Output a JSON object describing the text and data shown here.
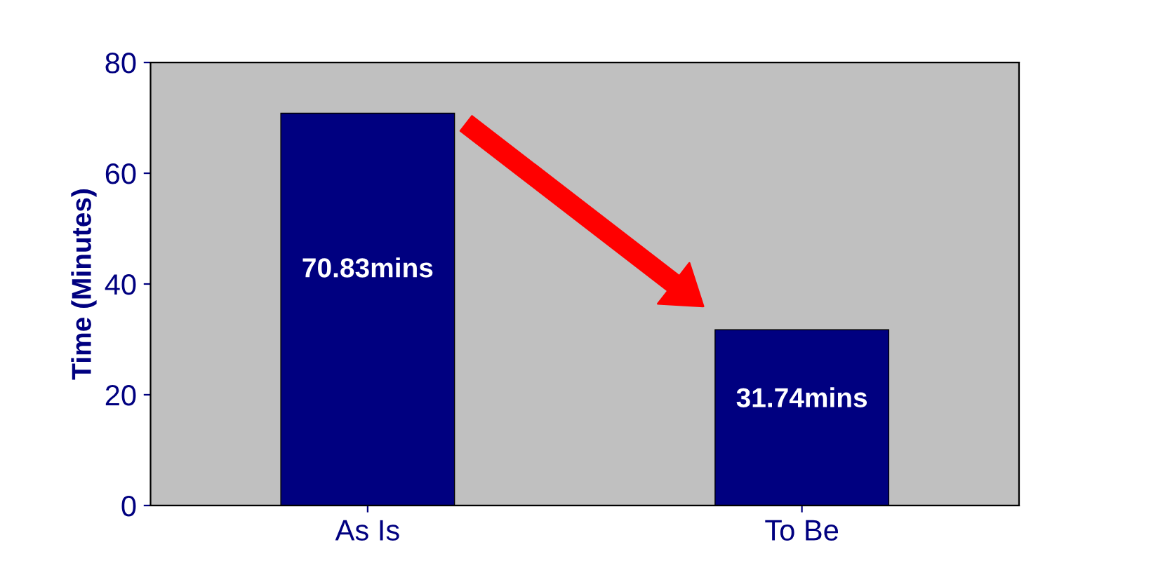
{
  "chart_data": {
    "type": "bar",
    "ylabel": "Time (Minutes)",
    "categories": [
      "As Is",
      "To Be"
    ],
    "values": [
      70.83,
      31.74
    ],
    "value_labels": [
      "70.83mins",
      "31.74mins"
    ],
    "color": "#000080",
    "ylim": [
      0,
      80
    ],
    "yticks": [
      0,
      20,
      40,
      60,
      80
    ],
    "grid": false,
    "legend": false
  }
}
